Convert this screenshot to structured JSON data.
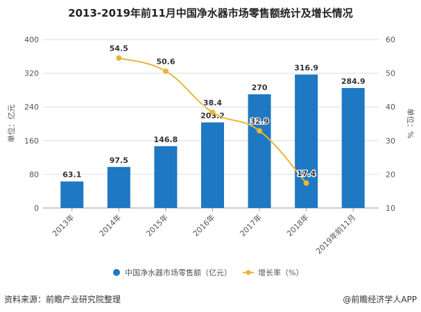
{
  "chart_data": {
    "type": "bar+line",
    "title": "2013-2019年前11月中国净水器市场零售额统计及增长情况",
    "categories": [
      "2013年",
      "2014年",
      "2015年",
      "2016年",
      "2017年",
      "2018年",
      "2019年前11月"
    ],
    "series": [
      {
        "name": "中国净水器市场零售额（亿元）",
        "type": "bar",
        "axis": "left",
        "color": "#1e78c2",
        "values": [
          63.1,
          97.5,
          146.8,
          203.2,
          270,
          316.9,
          284.9
        ]
      },
      {
        "name": "增长率（%）",
        "type": "line",
        "axis": "right",
        "color": "#e8b53b",
        "values": [
          null,
          54.5,
          50.6,
          38.4,
          32.9,
          17.4,
          null
        ]
      }
    ],
    "ylabel_left": "单位：亿元",
    "ylabel_right": "单位：%",
    "ylim_left": [
      0,
      400
    ],
    "yticks_left": [
      0,
      80,
      160,
      240,
      320,
      400
    ],
    "ylim_right": [
      10,
      60
    ],
    "yticks_right": [
      10,
      20,
      30,
      40,
      50,
      60
    ],
    "grid": true,
    "legend_position": "bottom"
  },
  "footer": {
    "source": "资料来源：前瞻产业研究院整理",
    "credit": "@前瞻经济学人APP"
  }
}
